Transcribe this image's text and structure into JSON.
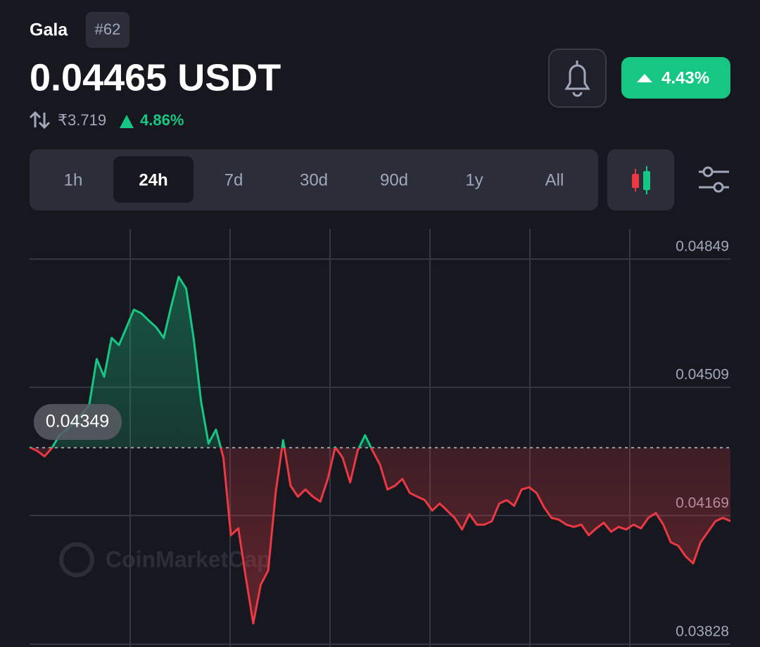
{
  "header": {
    "name": "Gala",
    "rank": "#62",
    "price": "0.04465 USDT",
    "inr_price": "₹3.719",
    "inr_change": "4.86%",
    "change_badge": "4.43%"
  },
  "tabs": [
    "1h",
    "24h",
    "7d",
    "30d",
    "90d",
    "1y",
    "All"
  ],
  "chart_data": {
    "type": "line",
    "watermark": "CoinMarketCap",
    "values": [
      0.0435,
      0.04341,
      0.04326,
      0.04348,
      0.04382,
      0.04397,
      0.04416,
      0.04438,
      0.04462,
      0.04584,
      0.04537,
      0.0464,
      0.04621,
      0.04668,
      0.04715,
      0.04705,
      0.04686,
      0.04668,
      0.0464,
      0.04724,
      0.04802,
      0.04771,
      0.0464,
      0.04472,
      0.0436,
      0.04397,
      0.04322,
      0.04117,
      0.04135,
      0.04005,
      0.03883,
      0.03986,
      0.04023,
      0.04229,
      0.04369,
      0.04248,
      0.04219,
      0.04238,
      0.04219,
      0.04206,
      0.04266,
      0.0435,
      0.04322,
      0.04257,
      0.04341,
      0.04382,
      0.04341,
      0.04304,
      0.04238,
      0.04248,
      0.04266,
      0.04229,
      0.04219,
      0.0421,
      0.04182,
      0.04201,
      0.04182,
      0.04163,
      0.04132,
      0.04173,
      0.04145,
      0.04145,
      0.04154,
      0.04201,
      0.0421,
      0.04195,
      0.04238,
      0.04244,
      0.04229,
      0.04191,
      0.04163,
      0.04158,
      0.04145,
      0.04139,
      0.04145,
      0.04117,
      0.04135,
      0.0415,
      0.04126,
      0.04139,
      0.04132,
      0.04145,
      0.04135,
      0.04163,
      0.04176,
      0.04145,
      0.04098,
      0.04089,
      0.04061,
      0.04042,
      0.04098,
      0.04126,
      0.04154,
      0.04163,
      0.04154
    ],
    "baseline": 0.04349,
    "up_color": "#16c784",
    "down_color": "#ea3943",
    "ylim": [
      0.03828,
      0.04849
    ],
    "yticks": [
      0.03828,
      0.04169,
      0.04509,
      0.04849
    ],
    "grid": true
  }
}
